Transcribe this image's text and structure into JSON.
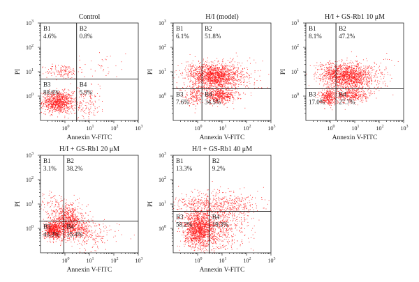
{
  "chart_data": [
    {
      "type": "scatter",
      "title": "Control",
      "xlabel": "Annexin V-FITC",
      "ylabel": "PI",
      "xscale": "log",
      "yscale": "log",
      "xlim": [
        0.1,
        1000
      ],
      "ylim": [
        0.1,
        1000
      ],
      "xticks": [
        "10^0",
        "10^1",
        "10^2",
        "10^3"
      ],
      "yticks": [
        "10^0",
        "10^1",
        "10^2",
        "10^3"
      ],
      "gate": {
        "x": 3.0,
        "y": 5.0
      },
      "point_color": "#ff1a1a",
      "quadrants": [
        {
          "name": "B1",
          "percent": "4.6%"
        },
        {
          "name": "B2",
          "percent": "0.8%"
        },
        {
          "name": "B3",
          "percent": "88.6%"
        },
        {
          "name": "B4",
          "percent": "5.9%"
        }
      ]
    },
    {
      "type": "scatter",
      "title": "H/I (model)",
      "xlabel": "Annexin V-FITC",
      "ylabel": "PI",
      "xscale": "log",
      "yscale": "log",
      "xlim": [
        0.1,
        1000
      ],
      "ylim": [
        0.1,
        1000
      ],
      "xticks": [
        "10^0",
        "10^1",
        "10^2",
        "10^3"
      ],
      "yticks": [
        "10^0",
        "10^1",
        "10^2",
        "10^3"
      ],
      "gate": {
        "x": 1.5,
        "y": 2.0
      },
      "point_color": "#ff1a1a",
      "quadrants": [
        {
          "name": "B1",
          "percent": "6.1%"
        },
        {
          "name": "B2",
          "percent": "51.8%"
        },
        {
          "name": "B3",
          "percent": "7.6%"
        },
        {
          "name": "B4",
          "percent": "34.5%"
        }
      ]
    },
    {
      "type": "scatter",
      "title": "H/I + GS-Rb1 10 μM",
      "xlabel": "Annexin V-FITC",
      "ylabel": "PI",
      "xscale": "log",
      "yscale": "log",
      "xlim": [
        0.1,
        1000
      ],
      "ylim": [
        0.1,
        1000
      ],
      "xticks": [
        "10^0",
        "10^1",
        "10^2",
        "10^3"
      ],
      "yticks": [
        "10^0",
        "10^1",
        "10^2",
        "10^3"
      ],
      "gate": {
        "x": 1.7,
        "y": 2.0
      },
      "point_color": "#ff1a1a",
      "quadrants": [
        {
          "name": "B1",
          "percent": "8.1%"
        },
        {
          "name": "B2",
          "percent": "47.2%"
        },
        {
          "name": "B3",
          "percent": "17.0%"
        },
        {
          "name": "B4",
          "percent": "27.7%"
        }
      ]
    },
    {
      "type": "scatter",
      "title": "H/I + GS-Rb1 20 μM",
      "xlabel": "Annexin V-FITC",
      "ylabel": "PI",
      "xscale": "log",
      "yscale": "log",
      "xlim": [
        0.1,
        1000
      ],
      "ylim": [
        0.1,
        1000
      ],
      "xticks": [
        "10^0",
        "10^1",
        "10^2",
        "10^3"
      ],
      "yticks": [
        "10^0",
        "10^1",
        "10^2",
        "10^3"
      ],
      "gate": {
        "x": 0.9,
        "y": 2.0
      },
      "point_color": "#ff1a1a",
      "quadrants": [
        {
          "name": "B1",
          "percent": "3.1%"
        },
        {
          "name": "B2",
          "percent": "38.2%"
        },
        {
          "name": "B3",
          "percent": "43.3%"
        },
        {
          "name": "B4",
          "percent": "15.4%"
        }
      ]
    },
    {
      "type": "scatter",
      "title": "H/I + GS-Rb1 40 μM",
      "xlabel": "Annexin V-FITC",
      "ylabel": "PI",
      "xscale": "log",
      "yscale": "log",
      "xlim": [
        0.1,
        1000
      ],
      "ylim": [
        0.1,
        1000
      ],
      "xticks": [
        "10^0",
        "10^1",
        "10^2",
        "10^3"
      ],
      "yticks": [
        "10^0",
        "10^1",
        "10^2",
        "10^3"
      ],
      "gate": {
        "x": 3.0,
        "y": 5.0
      },
      "point_color": "#ff1a1a",
      "quadrants": [
        {
          "name": "B1",
          "percent": "13.3%"
        },
        {
          "name": "B2",
          "percent": "9.2%"
        },
        {
          "name": "B3",
          "percent": "58.2%"
        },
        {
          "name": "B4",
          "percent": "19.3%"
        }
      ]
    }
  ]
}
